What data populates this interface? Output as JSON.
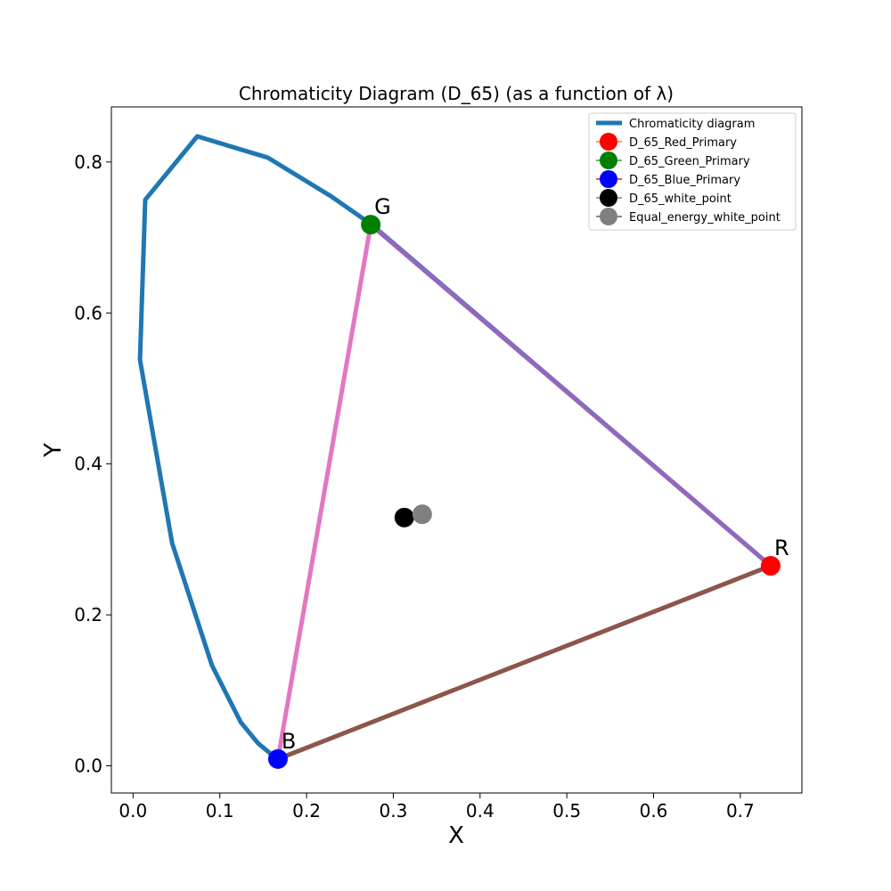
{
  "chart_data": {
    "type": "line",
    "title": "Chromaticity Diagram (D_65) (as a function of λ)",
    "xlabel": "X",
    "ylabel": "Y",
    "xlim": [
      -0.025,
      0.771
    ],
    "ylim": [
      -0.036,
      0.873
    ],
    "xticks": [
      0.0,
      0.1,
      0.2,
      0.3,
      0.4,
      0.5,
      0.6,
      0.7
    ],
    "xtick_labels": [
      "0.0",
      "0.1",
      "0.2",
      "0.3",
      "0.4",
      "0.5",
      "0.6",
      "0.7"
    ],
    "yticks": [
      0.0,
      0.2,
      0.4,
      0.6,
      0.8
    ],
    "ytick_labels": [
      "0.0",
      "0.2",
      "0.4",
      "0.6",
      "0.8"
    ],
    "grid": false,
    "legend_position": "top-right",
    "series": [
      {
        "name": "Chromaticity diagram",
        "kind": "line",
        "color": "#1f77b4",
        "x": [
          0.735,
          0.275,
          0.229,
          0.155,
          0.074,
          0.014,
          0.008,
          0.045,
          0.091,
          0.124,
          0.144,
          0.166
        ],
        "y": [
          0.265,
          0.717,
          0.754,
          0.806,
          0.834,
          0.75,
          0.538,
          0.295,
          0.133,
          0.058,
          0.03,
          0.009
        ]
      },
      {
        "name": "D_65_Red_Primary",
        "kind": "marker",
        "color": "#ff0000",
        "x": [
          0.735
        ],
        "y": [
          0.265
        ]
      },
      {
        "name": "D_65_Green_Primary",
        "kind": "marker",
        "color": "#008000",
        "x": [
          0.274
        ],
        "y": [
          0.717
        ]
      },
      {
        "name": "D_65_Blue_Primary",
        "kind": "marker",
        "color": "#0000ff",
        "x": [
          0.167
        ],
        "y": [
          0.009
        ]
      },
      {
        "name": "D_65_white_point",
        "kind": "marker",
        "color": "#000000",
        "x": [
          0.3127
        ],
        "y": [
          0.329
        ]
      },
      {
        "name": "Equal_energy_white_point",
        "kind": "marker",
        "color": "#808080",
        "x": [
          0.3333
        ],
        "y": [
          0.3333
        ]
      }
    ],
    "gamut_edges": [
      {
        "from": "R",
        "to": "G",
        "color": "#9467bd"
      },
      {
        "from": "G",
        "to": "B",
        "color": "#e377c2"
      },
      {
        "from": "B",
        "to": "R",
        "color": "#8c564b"
      }
    ],
    "legend_line_colors": [
      "#1f77b4",
      "#ff7f0e",
      "#2ca02c",
      "#d62728",
      "#9467bd",
      "#8c564b"
    ],
    "annotations": [
      {
        "text": "R",
        "x": 0.735,
        "y": 0.265,
        "point": "D_65_Red_Primary"
      },
      {
        "text": "G",
        "x": 0.274,
        "y": 0.717,
        "point": "D_65_Green_Primary"
      },
      {
        "text": "B",
        "x": 0.167,
        "y": 0.009,
        "point": "D_65_Blue_Primary"
      }
    ]
  }
}
